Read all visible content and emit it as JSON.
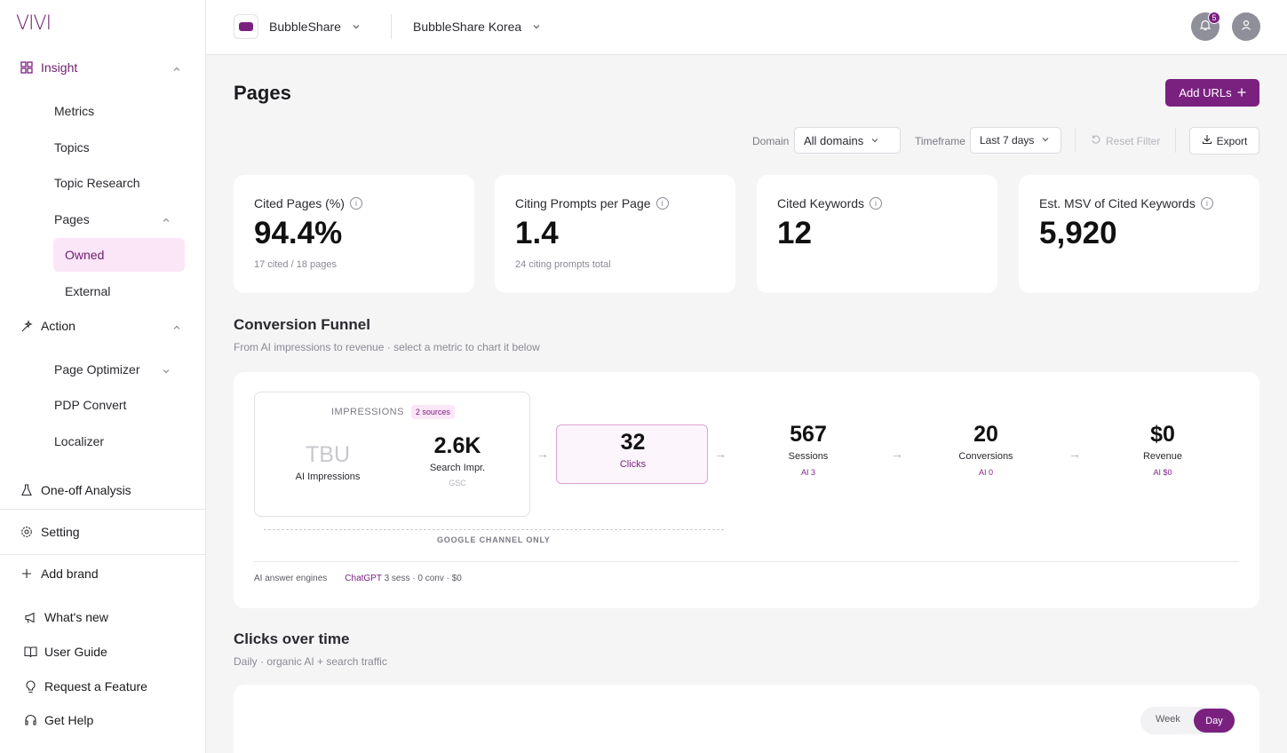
{
  "app": {
    "logo": "VIVI"
  },
  "sidebar": {
    "insight": "Insight",
    "metrics": "Metrics",
    "topics": "Topics",
    "topic_research": "Topic Research",
    "pages": "Pages",
    "owned": "Owned",
    "external": "External",
    "action": "Action",
    "page_optimizer": "Page Optimizer",
    "pdp_convert": "PDP Convert",
    "localizer": "Localizer",
    "one_off": "One-off Analysis",
    "setting": "Setting",
    "add_brand": "Add brand",
    "whats_new": "What's new",
    "user_guide": "User Guide",
    "request_feature": "Request a Feature",
    "get_help": "Get Help"
  },
  "header": {
    "brand": "BubbleShare",
    "sub_brand": "BubbleShare Korea",
    "notification_count": "5"
  },
  "page": {
    "title": "Pages",
    "add_urls": "Add URLs",
    "domain_label": "Domain",
    "domain_value": "All domains",
    "timeframe_label": "Timeframe",
    "timeframe_value": "Last 7 days",
    "reset_filter": "Reset Filter",
    "export": "Export"
  },
  "cards": [
    {
      "label": "Cited Pages (%)",
      "value": "94.4%",
      "sub": "17 cited / 18 pages"
    },
    {
      "label": "Citing Prompts per Page",
      "value": "1.4",
      "sub": "24 citing prompts total"
    },
    {
      "label": "Cited Keywords",
      "value": "12",
      "sub": ""
    },
    {
      "label": "Est. MSV of Cited Keywords",
      "value": "5,920",
      "sub": ""
    }
  ],
  "funnel": {
    "title": "Conversion Funnel",
    "subtitle": "From AI impressions to revenue · select a metric to chart it below",
    "impressions_head": "IMPRESSIONS",
    "sources_pill": "2 sources",
    "ai_imp_value": "TBU",
    "ai_imp_label": "AI Impressions",
    "search_imp_value": "2.6K",
    "search_imp_label": "Search Impr.",
    "search_imp_src": "GSC",
    "clicks_value": "32",
    "clicks_label": "Clicks",
    "sessions_value": "567",
    "sessions_label": "Sessions",
    "sessions_ai": "AI 3",
    "conversions_value": "20",
    "conversions_label": "Conversions",
    "conversions_ai": "AI 0",
    "revenue_value": "$0",
    "revenue_label": "Revenue",
    "revenue_ai": "AI $0",
    "google_only": "GOOGLE CHANNEL ONLY",
    "engines_label": "AI answer engines",
    "engine_name": "ChatGPT",
    "engine_stats": "3 sess · 0 conv · $0"
  },
  "clicks_chart": {
    "title": "Clicks over time",
    "subtitle": "Daily · organic AI + search traffic",
    "week": "Week",
    "day": "Day"
  },
  "colors": {
    "accent": "#7a2180",
    "accent_light": "#fbe6f7"
  }
}
